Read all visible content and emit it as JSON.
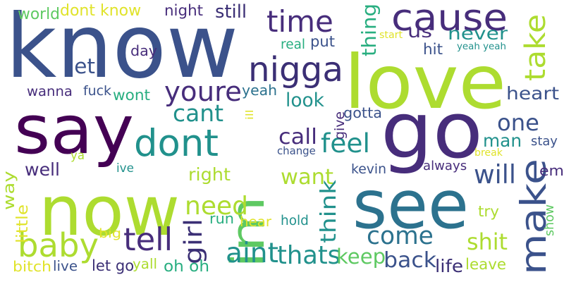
{
  "colors": {
    "purple": "#440154",
    "indigo": "#472d7b",
    "violet": "#3b2f75",
    "blue": "#3b528b",
    "steel": "#2c728e",
    "teal": "#21918c",
    "sea": "#28ae80",
    "green": "#5ec962",
    "lime": "#addc30",
    "yellow": "#d0e11c",
    "gold": "#e0e32a"
  },
  "words": [
    {
      "text": "know",
      "color": "blue"
    },
    {
      "text": "love",
      "color": "lime"
    },
    {
      "text": "say",
      "color": "purple"
    },
    {
      "text": "go",
      "color": "indigo"
    },
    {
      "text": "now",
      "color": "lime"
    },
    {
      "text": "im",
      "color": "green"
    },
    {
      "text": "see",
      "color": "steel"
    },
    {
      "text": "cause",
      "color": "indigo"
    },
    {
      "text": "time",
      "color": "indigo"
    },
    {
      "text": "nigga",
      "color": "violet"
    },
    {
      "text": "dont",
      "color": "teal"
    },
    {
      "text": "make",
      "color": "blue"
    },
    {
      "text": "baby",
      "color": "lime"
    },
    {
      "text": "feel",
      "color": "teal"
    },
    {
      "text": "tell",
      "color": "indigo"
    },
    {
      "text": "come",
      "color": "steel"
    },
    {
      "text": "youre",
      "color": "indigo"
    },
    {
      "text": "shit",
      "color": "lime"
    },
    {
      "text": "one",
      "color": "blue"
    },
    {
      "text": "thats",
      "color": "teal"
    },
    {
      "text": "take",
      "color": "lime"
    },
    {
      "text": "thing",
      "color": "sea"
    },
    {
      "text": "want",
      "color": "lime"
    },
    {
      "text": "will",
      "color": "blue"
    },
    {
      "text": "need",
      "color": "lime"
    },
    {
      "text": "think",
      "color": "teal"
    },
    {
      "text": "aint",
      "color": "teal"
    },
    {
      "text": "girl",
      "color": "violet"
    },
    {
      "text": "back",
      "color": "blue"
    },
    {
      "text": "keep",
      "color": "green"
    },
    {
      "text": "cant",
      "color": "teal"
    },
    {
      "text": "never",
      "color": "teal"
    },
    {
      "text": "heart",
      "color": "blue"
    },
    {
      "text": "us",
      "color": "indigo"
    },
    {
      "text": "let",
      "color": "blue"
    },
    {
      "text": "way",
      "color": "lime"
    },
    {
      "text": "call",
      "color": "indigo"
    },
    {
      "text": "look",
      "color": "teal"
    },
    {
      "text": "still",
      "color": "violet"
    },
    {
      "text": "man",
      "color": "teal"
    },
    {
      "text": "right",
      "color": "lime"
    },
    {
      "text": "well",
      "color": "indigo"
    },
    {
      "text": "life",
      "color": "violet"
    },
    {
      "text": "dont know",
      "color": "gold"
    },
    {
      "text": "night",
      "color": "indigo"
    },
    {
      "text": "yeah",
      "color": "steel"
    },
    {
      "text": "day",
      "color": "indigo"
    },
    {
      "text": "put",
      "color": "blue"
    },
    {
      "text": "hit",
      "color": "blue"
    },
    {
      "text": "stay",
      "color": "blue"
    },
    {
      "text": "world",
      "color": "green"
    },
    {
      "text": "fuck",
      "color": "blue"
    },
    {
      "text": "wont",
      "color": "sea"
    },
    {
      "text": "real",
      "color": "sea"
    },
    {
      "text": "little",
      "color": "gold"
    },
    {
      "text": "try",
      "color": "lime"
    },
    {
      "text": "oh oh",
      "color": "sea"
    },
    {
      "text": "leave",
      "color": "lime"
    },
    {
      "text": "hold",
      "color": "teal"
    },
    {
      "text": "wanna",
      "color": "indigo"
    },
    {
      "text": "kevin",
      "color": "blue"
    },
    {
      "text": "always",
      "color": "indigo"
    },
    {
      "text": "bitch",
      "color": "gold"
    },
    {
      "text": "live",
      "color": "blue"
    },
    {
      "text": "let go",
      "color": "violet"
    },
    {
      "text": "yall",
      "color": "lime"
    },
    {
      "text": "run",
      "color": "sea"
    },
    {
      "text": "hear",
      "color": "gold"
    },
    {
      "text": "gotta",
      "color": "blue"
    },
    {
      "text": "big",
      "color": "gold"
    },
    {
      "text": "give",
      "color": "indigo"
    },
    {
      "text": "show",
      "color": "green"
    },
    {
      "text": "em",
      "color": "indigo"
    },
    {
      "text": "change",
      "color": "blue"
    },
    {
      "text": "break",
      "color": "gold"
    },
    {
      "text": "ill",
      "color": "gold"
    },
    {
      "text": "ya",
      "color": "lime"
    },
    {
      "text": "ive",
      "color": "teal"
    },
    {
      "text": "start",
      "color": "gold"
    },
    {
      "text": "yeah yeah",
      "color": "teal"
    }
  ]
}
